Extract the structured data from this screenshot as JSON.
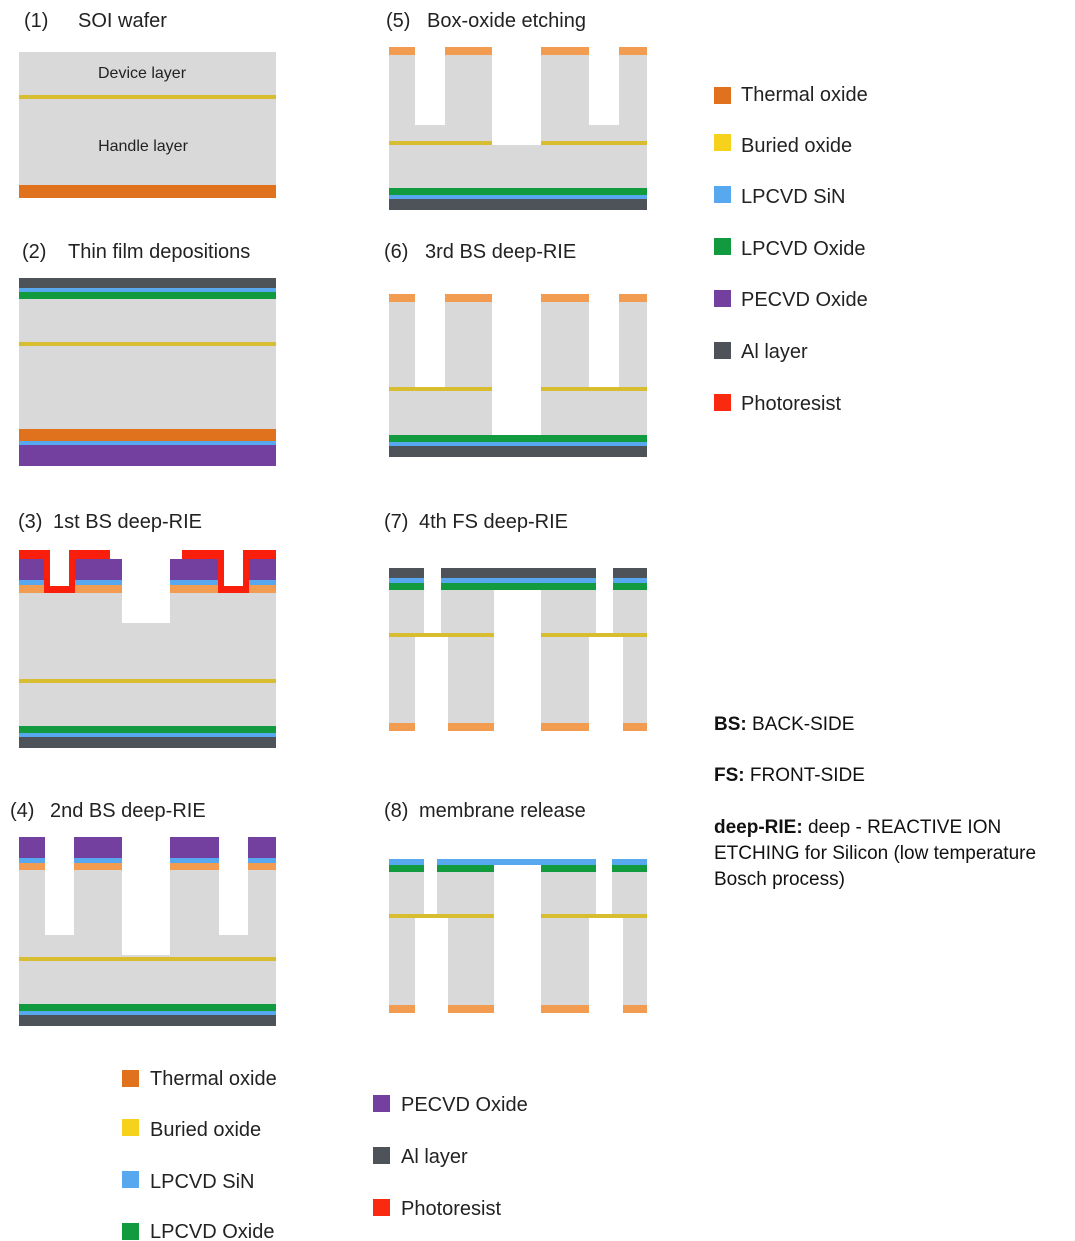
{
  "colors": {
    "silicon": "#d9d9d9",
    "thermal_oxide": "#e0711d",
    "thermal_oxide_light": "#f29c52",
    "buried_oxide": "#d9bd30",
    "lpcvd_sin": "#57a8ef",
    "lpcvd_oxide": "#119a3e",
    "pecvd_oxide": "#7440a0",
    "al_layer": "#4d5358",
    "photoresist": "#fa1f0d"
  },
  "steps": [
    {
      "num": "(1)",
      "title": "SOI wafer",
      "labels": [
        "Device layer",
        "Handle layer"
      ]
    },
    {
      "num": "(2)",
      "title": "Thin film depositions"
    },
    {
      "num": "(3)",
      "title": "1st BS deep-RIE"
    },
    {
      "num": "(4)",
      "title": "2nd BS deep-RIE"
    },
    {
      "num": "(5)",
      "title": "Box-oxide etching"
    },
    {
      "num": "(6)",
      "title": "3rd BS deep-RIE"
    },
    {
      "num": "(7)",
      "title": "4th FS deep-RIE"
    },
    {
      "num": "(8)",
      "title": "membrane release"
    }
  ],
  "legend_right": [
    {
      "label": "Thermal oxide",
      "color": "#e0711d"
    },
    {
      "label": "Buried oxide",
      "color": "#f7d21c"
    },
    {
      "label": "LPCVD SiN",
      "color": "#57a8ef"
    },
    {
      "label": "LPCVD Oxide",
      "color": "#119a3e"
    },
    {
      "label": "PECVD Oxide",
      "color": "#7440a0"
    },
    {
      "label": "Al layer",
      "color": "#4d5358"
    },
    {
      "label": "Photoresist",
      "color": "#fa2a10"
    }
  ],
  "legend_bottom_left": [
    {
      "label": "Thermal oxide",
      "color": "#e0711d"
    },
    {
      "label": "Buried oxide",
      "color": "#f7d21c"
    },
    {
      "label": "LPCVD SiN",
      "color": "#57a8ef"
    },
    {
      "label": "LPCVD Oxide",
      "color": "#119a3e"
    }
  ],
  "legend_bottom_right": [
    {
      "label": "PECVD Oxide",
      "color": "#7440a0"
    },
    {
      "label": "Al layer",
      "color": "#4d5358"
    },
    {
      "label": "Photoresist",
      "color": "#fa2a10"
    }
  ],
  "abbreviations": [
    {
      "key": "BS:",
      "text": "BACK-SIDE"
    },
    {
      "key": "FS:",
      "text": "FRONT-SIDE"
    },
    {
      "key": "deep-RIE:",
      "text": "deep - REACTIVE ION ETCHING for Silicon (low temperature Bosch process)"
    }
  ]
}
